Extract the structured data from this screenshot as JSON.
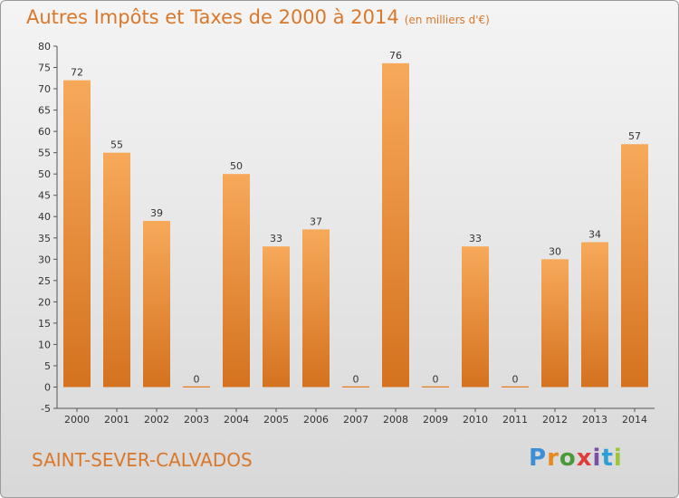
{
  "page": {
    "title": "Autres Impôts et Taxes de 2000 à 2014",
    "title_unit": "(en milliers d'€)",
    "commune": "SAINT-SEVER-CALVADOS",
    "logo_text": "Proxiti"
  },
  "colors": {
    "accent": "#d9782a",
    "bar_light": "#f7a95a",
    "bar_dark": "#d4721f",
    "logo_p": "#3c8fd6",
    "logo_r": "#e68a1e",
    "logo_o": "#4a9a3a",
    "logo_x": "#e03c3c",
    "logo_i": "#7a4fa8",
    "logo_t": "#2c9fd6",
    "logo_i2": "#9cc63a"
  },
  "chart_data": {
    "type": "bar",
    "title": "Autres Impôts et Taxes de 2000 à 2014",
    "categories": [
      "2000",
      "2001",
      "2002",
      "2003",
      "2004",
      "2005",
      "2006",
      "2007",
      "2008",
      "2009",
      "2010",
      "2011",
      "2012",
      "2013",
      "2014"
    ],
    "values": [
      72,
      55,
      39,
      0,
      50,
      33,
      37,
      0,
      76,
      0,
      33,
      0,
      30,
      34,
      57
    ],
    "xlabel": "",
    "ylabel": "",
    "ylim": [
      -5,
      80
    ],
    "yticks": [
      -5,
      0,
      5,
      10,
      15,
      20,
      25,
      30,
      35,
      40,
      45,
      50,
      55,
      60,
      65,
      70,
      75,
      80
    ],
    "grid": false,
    "legend": "none"
  }
}
